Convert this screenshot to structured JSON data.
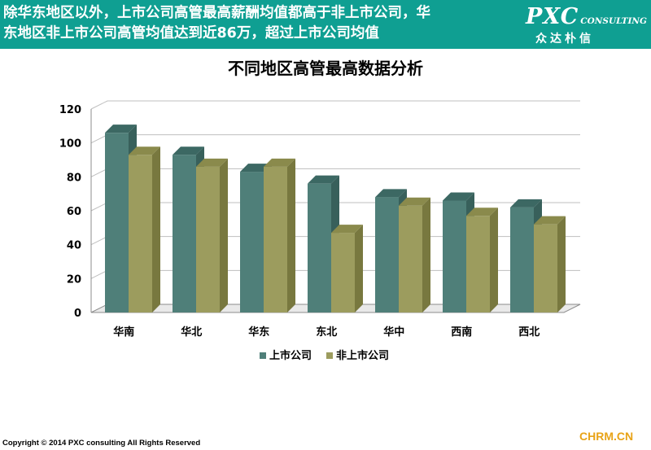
{
  "header": {
    "line1": "除华东地区以外，上市公司高管最高薪酬均值都高于非上市公司，华",
    "line2": "东地区非上市公司高管均值达到近86万，超过上市公司均值"
  },
  "logo": {
    "brand": "PXC",
    "sub": "CONSULTING",
    "chinese": "众达朴信"
  },
  "chart_data": {
    "type": "bar",
    "title": "不同地区高管最高数据分析",
    "categories": [
      "华南",
      "华北",
      "华东",
      "东北",
      "华中",
      "西南",
      "西北"
    ],
    "series": [
      {
        "name": "上市公司",
        "values": [
          106,
          93,
          83,
          76,
          68,
          66,
          62
        ]
      },
      {
        "name": "非上市公司",
        "values": [
          93,
          86,
          86,
          47,
          63,
          57,
          52
        ]
      }
    ],
    "ylim": [
      0,
      120
    ],
    "yticks": [
      0,
      20,
      40,
      60,
      80,
      100,
      120
    ],
    "grid": true,
    "legend_position": "bottom",
    "colors": {
      "series1": "#4f7f79",
      "series1_side": "#38605b",
      "series1_top": "#3c6863",
      "series2": "#9c9c5e",
      "series2_side": "#78783f",
      "series2_top": "#8a8a4c",
      "grid": "#bfbfbf",
      "axis": "#8c8c8c"
    }
  },
  "footer": {
    "copyright": "Copyright © 2014  PXC consulting All Rights Reserved",
    "site": "CHRM.CN"
  }
}
